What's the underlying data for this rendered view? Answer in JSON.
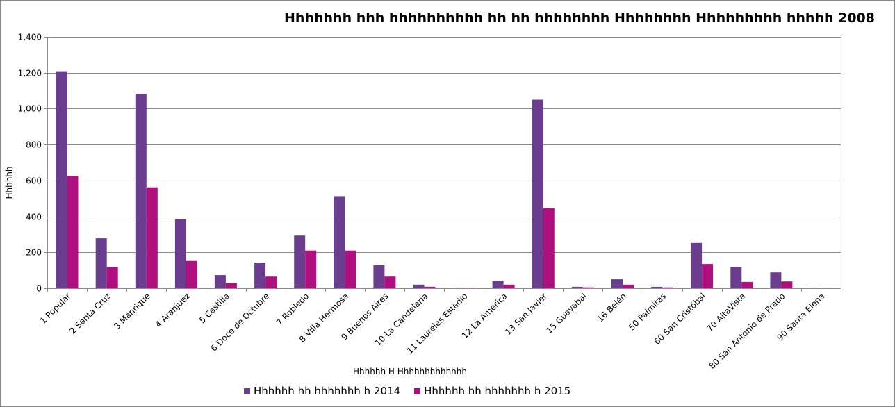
{
  "chart_data": {
    "type": "bar",
    "title": "Hhhhhhh hhh hhhhhhhhhh hh hh hhhhhhhh Hhhhhhhh Hhhhhhhhh hhhhh 2008",
    "xlabel": "Hhhhhh H Hhhhhhhhhhhhh",
    "ylabel": "Hhhhhh",
    "ylim": [
      0,
      1400
    ],
    "yticks": [
      "0",
      "200",
      "400",
      "600",
      "800",
      "1,000",
      "1,200",
      "1,400"
    ],
    "ytick_values": [
      0,
      200,
      400,
      600,
      800,
      1000,
      1200,
      1400
    ],
    "grid": true,
    "legend_position": "bottom",
    "categories": [
      "1 Popular",
      "2 Santa Cruz",
      "3 Manrique",
      "4 Aranjuez",
      "5 Castilla",
      "6 Doce de Octubre",
      "7 Robledo",
      "8 Villa Hermosa",
      "9 Buenos Aires",
      "10 La Candelaria",
      "11 Laureles Estadio",
      "12 La América",
      "13 San Javier",
      "15 Guayabal",
      "16 Belén",
      "50 Palmitas",
      "60 San Cristóbal",
      "70 AltaVista",
      "80 San Antonio de Prado",
      "90 Santa Elena"
    ],
    "series": [
      {
        "name": "Hhhhhh hh hhhhhhh h 2014",
        "color": "#6a3d8f",
        "values": [
          1208,
          278,
          1083,
          383,
          73,
          143,
          293,
          513,
          128,
          20,
          3,
          42,
          1050,
          8,
          50,
          8,
          252,
          120,
          88,
          3
        ]
      },
      {
        "name": "Hhhhhh hh hhhhhhh h 2015",
        "color": "#b0107f",
        "values": [
          625,
          120,
          562,
          152,
          28,
          65,
          210,
          210,
          65,
          8,
          2,
          20,
          445,
          5,
          20,
          5,
          135,
          35,
          38,
          0
        ]
      }
    ]
  }
}
